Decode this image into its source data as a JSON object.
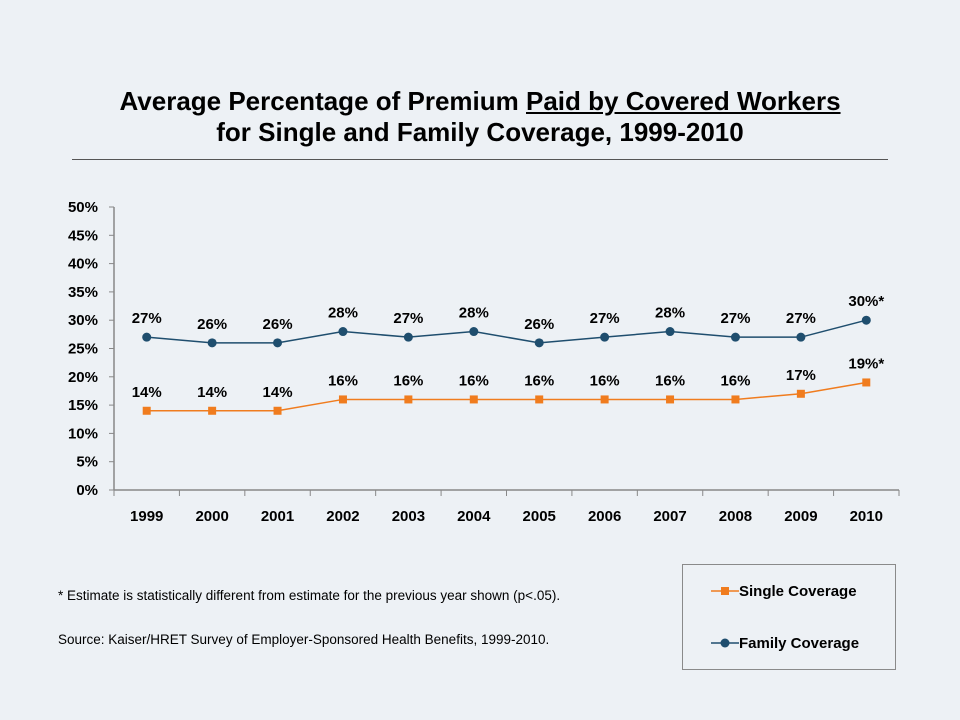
{
  "title": {
    "line1_prefix": "Average Percentage of Premium ",
    "line1_underlined": "Paid by Covered Workers",
    "line2": "for Single and Family Coverage, 1999-2010"
  },
  "footnote": "* Estimate is statistically different from estimate for the previous year shown (p<.05).",
  "source": "Source:   Kaiser/HRET Survey of Employer-Sponsored Health Benefits, 1999-2010.",
  "legend": {
    "single": "Single Coverage",
    "family": "Family Coverage"
  },
  "chart_data": {
    "type": "line",
    "categories": [
      "1999",
      "2000",
      "2001",
      "2002",
      "2003",
      "2004",
      "2005",
      "2006",
      "2007",
      "2008",
      "2009",
      "2010"
    ],
    "ylim": [
      0,
      50
    ],
    "yticks": [
      "0%",
      "5%",
      "10%",
      "15%",
      "20%",
      "25%",
      "30%",
      "35%",
      "40%",
      "45%",
      "50%"
    ],
    "grid": false,
    "legend_position": "bottom-right",
    "series": [
      {
        "name": "Family Coverage",
        "color": "#1f4e6e",
        "marker": "circle",
        "values": [
          27,
          26,
          26,
          28,
          27,
          28,
          26,
          27,
          28,
          27,
          27,
          30
        ],
        "labels": [
          "27%",
          "26%",
          "26%",
          "28%",
          "27%",
          "28%",
          "26%",
          "27%",
          "28%",
          "27%",
          "27%",
          "30%*"
        ]
      },
      {
        "name": "Single Coverage",
        "color": "#f07c1e",
        "marker": "square",
        "values": [
          14,
          14,
          14,
          16,
          16,
          16,
          16,
          16,
          16,
          16,
          17,
          19
        ],
        "labels": [
          "14%",
          "14%",
          "14%",
          "16%",
          "16%",
          "16%",
          "16%",
          "16%",
          "16%",
          "16%",
          "17%",
          "19%*"
        ]
      }
    ]
  }
}
